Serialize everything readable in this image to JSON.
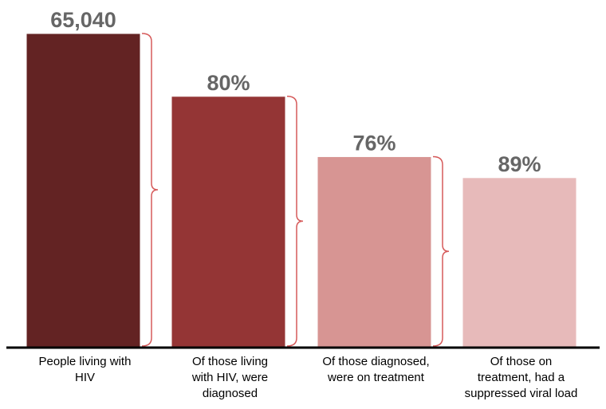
{
  "chart_data": {
    "type": "bar",
    "title": "",
    "xlabel": "",
    "ylabel": "",
    "ylim": [
      0,
      65040
    ],
    "grid": false,
    "legend": "none",
    "categories": [
      [
        "People living with",
        "HIV"
      ],
      [
        "Of those living",
        "with HIV, were",
        "diagnosed"
      ],
      [
        "Of those diagnosed,",
        "were on treatment"
      ],
      [
        "Of those on",
        "treatment, had a",
        "suppressed viral load"
      ]
    ],
    "values": [
      65040,
      52032,
      39544,
      35194
    ],
    "data_labels": [
      "65,040",
      "80%",
      "76%",
      "89%"
    ],
    "colors": [
      "#632323",
      "#943535",
      "#d79593",
      "#e7baba"
    ],
    "bracket_color": "#d65a5a"
  }
}
